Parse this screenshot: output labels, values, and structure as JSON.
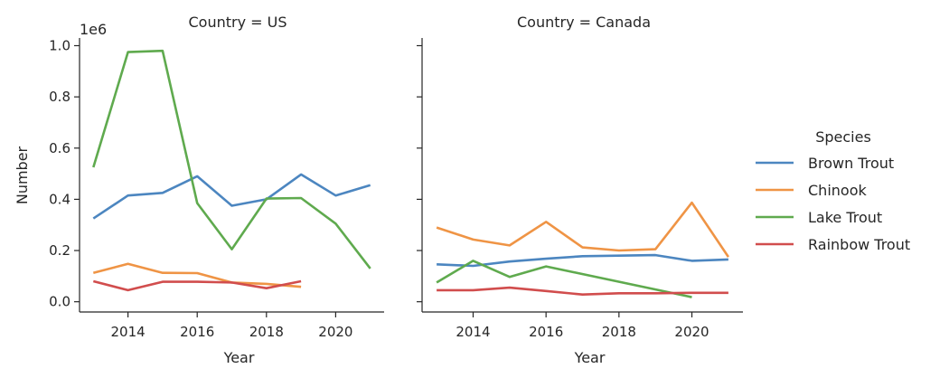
{
  "chart_data": {
    "type": "line",
    "facet_label": "Country",
    "x_label": "Year",
    "y_label": "Number",
    "y_multiplier_label": "1e6",
    "x_ticks": [
      2014,
      2016,
      2018,
      2020
    ],
    "y_ticks": [
      0.0,
      0.2,
      0.4,
      0.6,
      0.8,
      1.0
    ],
    "y_tick_labels": [
      "0.0",
      "0.2",
      "0.4",
      "0.6",
      "0.8",
      "1.0"
    ],
    "xlim": [
      2012.6,
      2021.4
    ],
    "ylim": [
      -0.04,
      1.03
    ],
    "legend": {
      "title": "Species",
      "placement": "right"
    },
    "colors": {
      "Brown Trout": "#4c86c0",
      "Chinook": "#ef9445",
      "Lake Trout": "#5faa4e",
      "Rainbow Trout": "#d14d4d"
    },
    "panels": [
      {
        "title": "Country = US",
        "series": [
          {
            "name": "Brown Trout",
            "x": [
              2013,
              2014,
              2015,
              2016,
              2017,
              2018,
              2019,
              2020,
              2021
            ],
            "y": [
              0.325,
              0.415,
              0.425,
              0.49,
              0.375,
              0.4,
              0.497,
              0.415,
              0.455
            ]
          },
          {
            "name": "Chinook",
            "x": [
              2013,
              2014,
              2015,
              2016,
              2017,
              2018,
              2019
            ],
            "y": [
              0.113,
              0.148,
              0.113,
              0.112,
              0.075,
              0.07,
              0.058
            ]
          },
          {
            "name": "Lake Trout",
            "x": [
              2013,
              2014,
              2015,
              2016,
              2017,
              2018,
              2019,
              2020,
              2021
            ],
            "y": [
              0.525,
              0.975,
              0.98,
              0.385,
              0.205,
              0.403,
              0.405,
              0.305,
              0.13
            ]
          },
          {
            "name": "Rainbow Trout",
            "x": [
              2013,
              2014,
              2015,
              2016,
              2017,
              2018,
              2019
            ],
            "y": [
              0.08,
              0.045,
              0.078,
              0.078,
              0.075,
              0.053,
              0.08
            ]
          }
        ]
      },
      {
        "title": "Country = Canada",
        "series": [
          {
            "name": "Brown Trout",
            "x": [
              2013,
              2014,
              2015,
              2016,
              2017,
              2018,
              2019,
              2020,
              2021
            ],
            "y": [
              0.146,
              0.14,
              0.157,
              0.168,
              0.178,
              0.18,
              0.182,
              0.16,
              0.165
            ]
          },
          {
            "name": "Chinook",
            "x": [
              2013,
              2014,
              2015,
              2016,
              2017,
              2018,
              2019,
              2020,
              2021
            ],
            "y": [
              0.29,
              0.243,
              0.22,
              0.312,
              0.212,
              0.2,
              0.205,
              0.387,
              0.175
            ]
          },
          {
            "name": "Lake Trout",
            "x": [
              2013,
              2014,
              2015,
              2016,
              2020
            ],
            "y": [
              0.075,
              0.16,
              0.097,
              0.138,
              0.018
            ]
          },
          {
            "name": "Rainbow Trout",
            "x": [
              2013,
              2014,
              2015,
              2016,
              2017,
              2018,
              2019,
              2020,
              2021
            ],
            "y": [
              0.045,
              0.045,
              0.055,
              0.042,
              0.028,
              0.033,
              0.033,
              0.035,
              0.035
            ]
          }
        ]
      }
    ]
  }
}
